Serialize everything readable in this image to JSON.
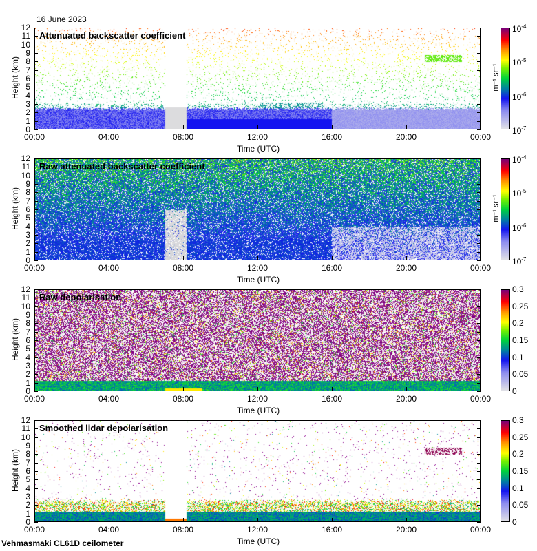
{
  "date": "16 June 2023",
  "footer": "Vehmasmaki CL61D ceilometer",
  "chart_data": [
    {
      "type": "heatmap",
      "title": "Attenuated backscatter coefficient",
      "xlabel": "Time (UTC)",
      "ylabel": "Height (km)",
      "ylim": [
        0,
        12
      ],
      "xticks": [
        "00:00",
        "04:00",
        "08:00",
        "12:00",
        "16:00",
        "20:00",
        "00:00"
      ],
      "yticks": [
        "0",
        "1",
        "2",
        "3",
        "4",
        "5",
        "6",
        "7",
        "8",
        "9",
        "10",
        "11",
        "12"
      ],
      "colorbar": {
        "scale": "log",
        "range": [
          1e-07,
          0.0001
        ],
        "ticks": [
          {
            "base": "10",
            "exp": "-7"
          },
          {
            "base": "10",
            "exp": "-6"
          },
          {
            "base": "10",
            "exp": "-5"
          },
          {
            "base": "10",
            "exp": "-4"
          }
        ],
        "unit": "m⁻¹ sr⁻¹"
      }
    },
    {
      "type": "heatmap",
      "title": "Raw attenuated backscatter coefficient",
      "xlabel": "Time (UTC)",
      "ylabel": "Height (km)",
      "ylim": [
        0,
        12
      ],
      "xticks": [
        "00:00",
        "04:00",
        "08:00",
        "12:00",
        "16:00",
        "20:00",
        "00:00"
      ],
      "yticks": [
        "0",
        "1",
        "2",
        "3",
        "4",
        "5",
        "6",
        "7",
        "8",
        "9",
        "10",
        "11",
        "12"
      ],
      "colorbar": {
        "scale": "log",
        "range": [
          1e-07,
          0.0001
        ],
        "ticks": [
          {
            "base": "10",
            "exp": "-7"
          },
          {
            "base": "10",
            "exp": "-6"
          },
          {
            "base": "10",
            "exp": "-5"
          },
          {
            "base": "10",
            "exp": "-4"
          }
        ],
        "unit": "m⁻¹ sr⁻¹"
      }
    },
    {
      "type": "heatmap",
      "title": "Raw depolarisation",
      "xlabel": "Time (UTC)",
      "ylabel": "Height (km)",
      "ylim": [
        0,
        12
      ],
      "xticks": [
        "00:00",
        "04:00",
        "08:00",
        "12:00",
        "16:00",
        "20:00",
        "00:00"
      ],
      "yticks": [
        "0",
        "1",
        "2",
        "3",
        "4",
        "5",
        "6",
        "7",
        "8",
        "9",
        "10",
        "11",
        "12"
      ],
      "colorbar": {
        "scale": "linear",
        "range": [
          0,
          0.3
        ],
        "ticks": [
          "0",
          "0.05",
          "0.1",
          "0.15",
          "0.2",
          "0.25",
          "0.3"
        ],
        "unit": ""
      }
    },
    {
      "type": "heatmap",
      "title": "Smoothed lidar depolarisation",
      "xlabel": "Time (UTC)",
      "ylabel": "Height (km)",
      "ylim": [
        0,
        12
      ],
      "xticks": [
        "00:00",
        "04:00",
        "08:00",
        "12:00",
        "16:00",
        "20:00",
        "00:00"
      ],
      "yticks": [
        "0",
        "1",
        "2",
        "3",
        "4",
        "5",
        "6",
        "7",
        "8",
        "9",
        "10",
        "11",
        "12"
      ],
      "colorbar": {
        "scale": "linear",
        "range": [
          0,
          0.3
        ],
        "ticks": [
          "0",
          "0.05",
          "0.1",
          "0.15",
          "0.2",
          "0.25",
          "0.3"
        ],
        "unit": ""
      }
    }
  ]
}
